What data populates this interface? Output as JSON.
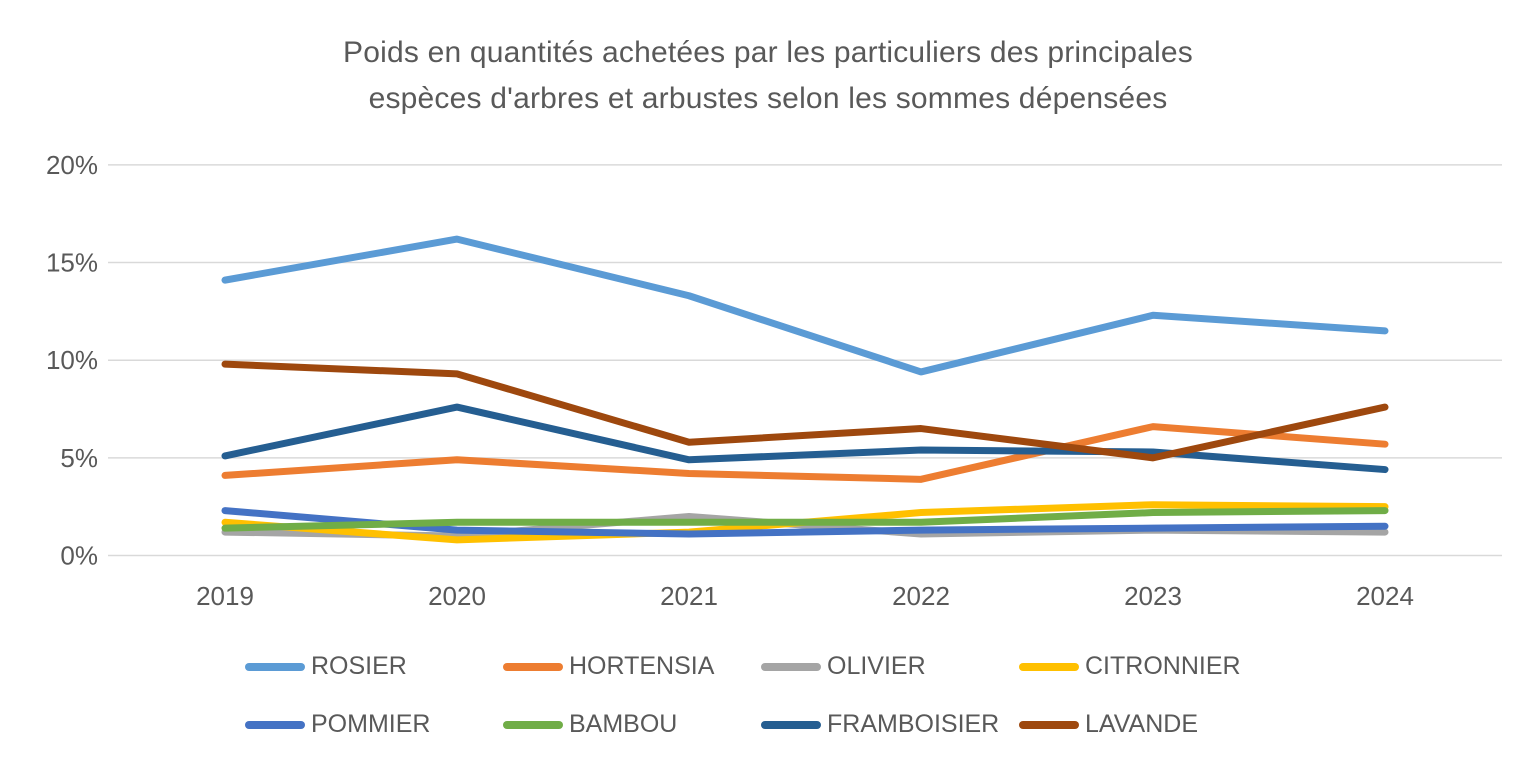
{
  "title": {
    "line1": "Poids en quantités achetées par les particuliers des principales",
    "line2": "espèces d'arbres et arbustes selon les sommes dépensées"
  },
  "colors": {
    "text": "#595959",
    "grid": "#d9d9d9",
    "background": "#ffffff"
  },
  "chart_data": {
    "type": "line",
    "title": "Poids en quantités achetées par les particuliers des principales espèces d'arbres et arbustes selon les sommes dépensées",
    "categories": [
      "2019",
      "2020",
      "2021",
      "2022",
      "2023",
      "2024"
    ],
    "xlabel": "",
    "ylabel": "",
    "ylim": [
      0,
      20
    ],
    "y_tick_values": [
      0,
      5,
      10,
      15,
      20
    ],
    "y_tick_labels": [
      "0%",
      "5%",
      "10%",
      "15%",
      "20%"
    ],
    "grid": true,
    "legend_position": "bottom",
    "series": [
      {
        "name": "ROSIER",
        "color": "#5b9bd5",
        "values": [
          14.1,
          16.2,
          13.3,
          9.4,
          12.3,
          11.5
        ]
      },
      {
        "name": "HORTENSIA",
        "color": "#ed7d31",
        "values": [
          4.1,
          4.9,
          4.2,
          3.9,
          6.6,
          5.7
        ]
      },
      {
        "name": "OLIVIER",
        "color": "#a5a5a5",
        "values": [
          1.2,
          1.0,
          2.0,
          1.1,
          1.3,
          1.2
        ]
      },
      {
        "name": "CITRONNIER",
        "color": "#ffc000",
        "values": [
          1.7,
          0.8,
          1.2,
          2.2,
          2.6,
          2.5
        ]
      },
      {
        "name": "POMMIER",
        "color": "#4472c4",
        "values": [
          2.3,
          1.3,
          1.1,
          1.3,
          1.4,
          1.5
        ]
      },
      {
        "name": "BAMBOU",
        "color": "#70ad47",
        "values": [
          1.4,
          1.7,
          1.7,
          1.7,
          2.2,
          2.3
        ]
      },
      {
        "name": "FRAMBOISIER",
        "color": "#255e91",
        "values": [
          5.1,
          7.6,
          4.9,
          5.4,
          5.3,
          4.4
        ]
      },
      {
        "name": "LAVANDE",
        "color": "#9e480e",
        "values": [
          9.8,
          9.3,
          5.8,
          6.5,
          5.0,
          7.6
        ]
      }
    ],
    "legend_rows": [
      [
        "ROSIER",
        "HORTENSIA",
        "OLIVIER",
        "CITRONNIER"
      ],
      [
        "POMMIER",
        "BAMBOU",
        "FRAMBOISIER",
        "LAVANDE"
      ]
    ]
  }
}
